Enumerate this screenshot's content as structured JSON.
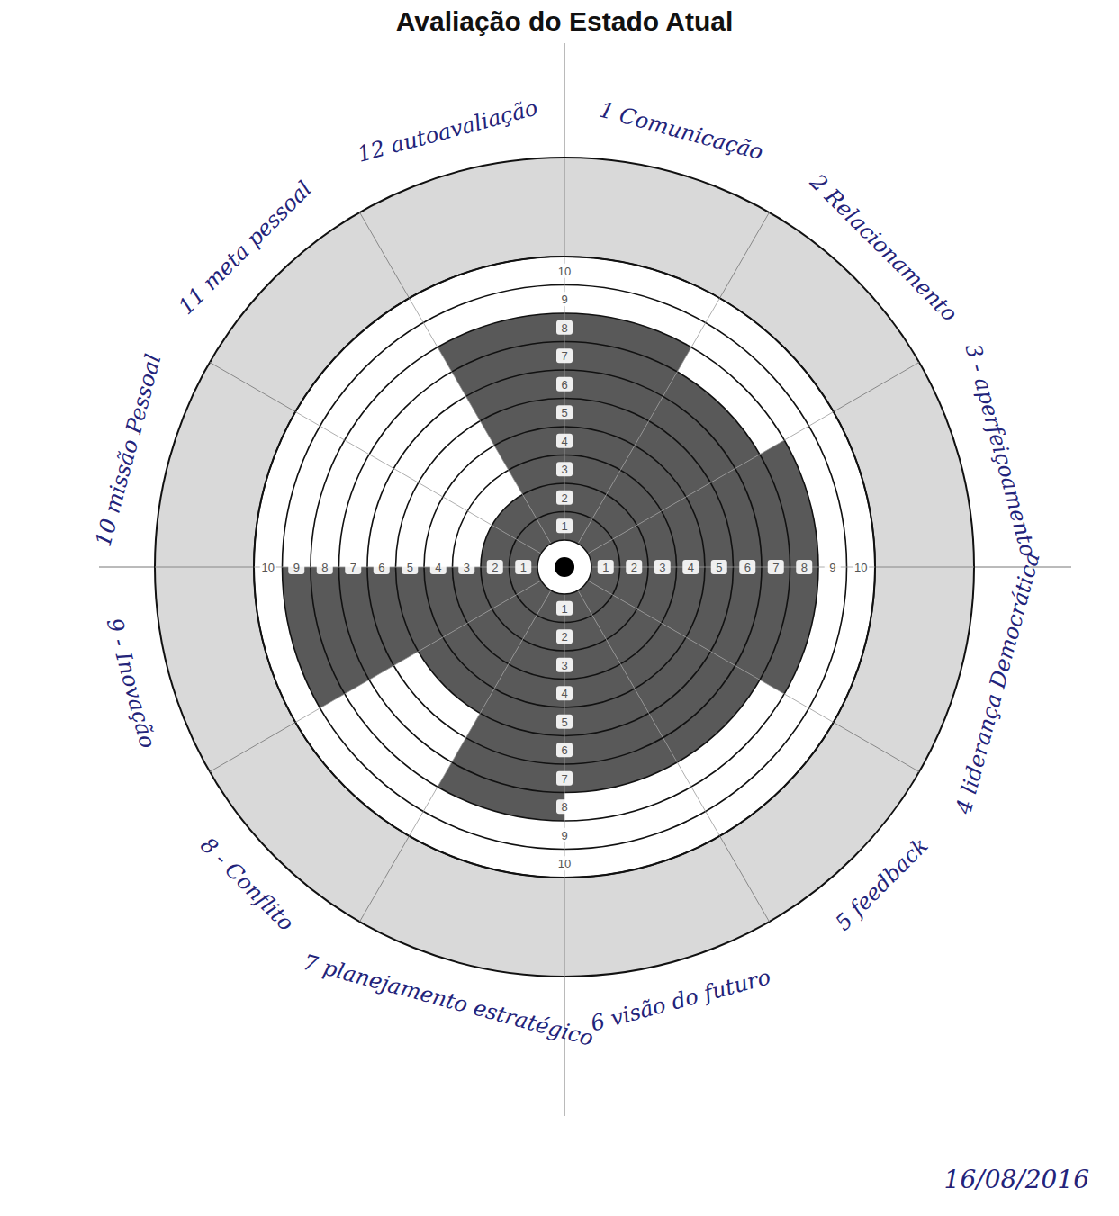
{
  "chart_data": {
    "type": "polar",
    "title": "Avaliação do Estado Atual",
    "categories": [
      "1 Comunicação",
      "2 Relacionamento",
      "3 - aperfeiçoamento",
      "4 liderança Democrática",
      "5 feedback",
      "6 visão do futuro",
      "7 planejamento estratégico",
      "8 - Conflito",
      "9 - Inovação",
      "10 missão Pessoal",
      "11 meta pessoal",
      "12 autoavaliação"
    ],
    "values": [
      8,
      7,
      8,
      8,
      7,
      7,
      8,
      5,
      9,
      2,
      2,
      8
    ],
    "color": "#3c3c3c",
    "ylim": [
      0,
      10
    ],
    "yticks": [
      1,
      2,
      3,
      4,
      5,
      6,
      7,
      8,
      9,
      10
    ],
    "grid": true,
    "annotations": [
      "16/08/2016"
    ]
  }
}
